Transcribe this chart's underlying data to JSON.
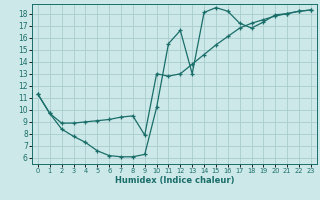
{
  "xlabel": "Humidex (Indice chaleur)",
  "bg_color": "#cce8e8",
  "grid_color": "#aacccc",
  "line_color": "#1a6e6a",
  "xlim": [
    -0.5,
    23.5
  ],
  "ylim": [
    5.5,
    18.8
  ],
  "yticks": [
    6,
    7,
    8,
    9,
    10,
    11,
    12,
    13,
    14,
    15,
    16,
    17,
    18
  ],
  "xticks": [
    0,
    1,
    2,
    3,
    4,
    5,
    6,
    7,
    8,
    9,
    10,
    11,
    12,
    13,
    14,
    15,
    16,
    17,
    18,
    19,
    20,
    21,
    22,
    23
  ],
  "curve1_x": [
    0,
    1,
    2,
    3,
    4,
    5,
    6,
    7,
    8,
    9,
    10,
    11,
    12,
    13,
    14,
    15,
    16,
    17,
    18,
    19,
    20,
    21,
    22,
    23
  ],
  "curve1_y": [
    11.3,
    9.7,
    8.4,
    7.8,
    7.3,
    6.6,
    6.2,
    6.1,
    6.1,
    6.3,
    10.2,
    15.5,
    16.6,
    13.0,
    18.1,
    18.5,
    18.2,
    17.2,
    16.8,
    17.3,
    17.9,
    18.0,
    18.2,
    18.3
  ],
  "curve2_x": [
    0,
    1,
    2,
    3,
    4,
    5,
    6,
    7,
    8,
    9,
    10,
    11,
    12,
    13,
    14,
    15,
    16,
    17,
    18,
    19,
    20,
    21,
    22,
    23
  ],
  "curve2_y": [
    11.3,
    9.7,
    8.9,
    8.9,
    9.0,
    9.1,
    9.2,
    9.4,
    9.5,
    7.9,
    13.0,
    12.8,
    13.0,
    13.8,
    14.6,
    15.4,
    16.1,
    16.8,
    17.2,
    17.5,
    17.8,
    18.0,
    18.2,
    18.3
  ]
}
